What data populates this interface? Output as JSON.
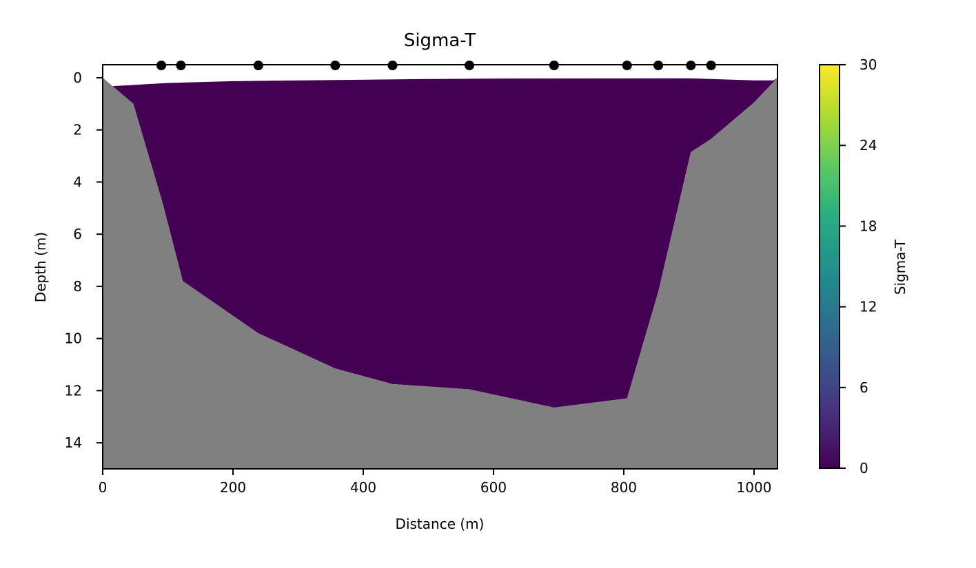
{
  "chart_data": {
    "type": "heatmap",
    "title": "Sigma-T",
    "xlabel": "Distance (m)",
    "ylabel": "Depth (m)",
    "xlim": [
      0,
      1036
    ],
    "ylim": [
      15,
      -0.5
    ],
    "x_ticks": [
      0,
      200,
      400,
      600,
      800,
      1000
    ],
    "y_ticks": [
      0,
      2,
      4,
      6,
      8,
      10,
      12,
      14
    ],
    "grid": false,
    "stations_x": [
      90,
      120,
      239,
      357,
      445,
      563,
      693,
      805,
      853,
      903,
      934
    ],
    "water_surface": [
      [
        15,
        0.32
      ],
      [
        100,
        0.2
      ],
      [
        200,
        0.13
      ],
      [
        500,
        0.05
      ],
      [
        600,
        0.03
      ],
      [
        900,
        0.02
      ],
      [
        1000,
        0.1
      ],
      [
        1030,
        0.1
      ]
    ],
    "bathymetry": [
      [
        0,
        0.0
      ],
      [
        47,
        1.0
      ],
      [
        92,
        4.8
      ],
      [
        123,
        7.8
      ],
      [
        239,
        9.8
      ],
      [
        357,
        11.15
      ],
      [
        445,
        11.75
      ],
      [
        563,
        11.95
      ],
      [
        693,
        12.65
      ],
      [
        805,
        12.3
      ],
      [
        853,
        8.2
      ],
      [
        903,
        2.85
      ],
      [
        934,
        2.35
      ],
      [
        1000,
        0.95
      ],
      [
        1036,
        0.0
      ]
    ],
    "sigma_t_value": 0,
    "colorbar": {
      "label": "Sigma-T",
      "colormap": "viridis",
      "range": [
        0,
        30
      ],
      "ticks": [
        0,
        6,
        12,
        18,
        24,
        30
      ]
    },
    "colors": {
      "water_fill": "#440154",
      "seabed_fill": "#808080",
      "station_marker": "#000000"
    }
  }
}
